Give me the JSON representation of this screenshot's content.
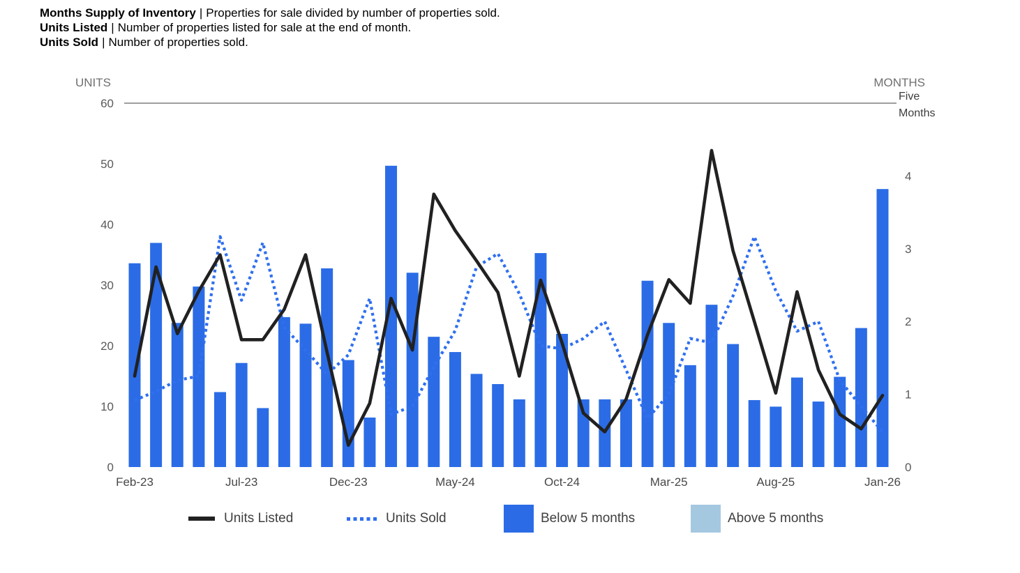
{
  "header": {
    "lines": [
      {
        "term": "Months Supply of Inventory",
        "divider": "|",
        "desc": "Properties for sale divided by number of properties sold."
      },
      {
        "term": "Units Listed",
        "divider": "|",
        "desc": "Number of properties listed for sale at the end of month."
      },
      {
        "term": "Units Sold",
        "divider": "|",
        "desc": "Number of properties sold."
      }
    ]
  },
  "chart_data": {
    "type": "combo: bars (months supply, right axis) + two lines (units, left axis)",
    "title": "Months Supply of Inventory",
    "grid": "off (single rule line at top = 5 months / 60 units)",
    "legend_position": "bottom",
    "categories": [
      "Feb-23",
      "Mar-23",
      "Apr-23",
      "May-23",
      "Jun-23",
      "Jul-23",
      "Aug-23",
      "Sep-23",
      "Oct-23",
      "Nov-23",
      "Dec-23",
      "Jan-24",
      "Feb-24",
      "Mar-24",
      "Apr-24",
      "May-24",
      "Jun-24",
      "Jul-24",
      "Aug-24",
      "Sep-24",
      "Oct-24",
      "Nov-24",
      "Dec-24",
      "Jan-25",
      "Feb-25",
      "Mar-25",
      "Apr-25",
      "May-25",
      "Jun-25",
      "Jul-25",
      "Aug-25",
      "Sep-25",
      "Oct-25",
      "Nov-25",
      "Dec-25",
      "Jan-26"
    ],
    "x_axis": {
      "shown_tick_labels": [
        "Feb-23",
        "Jul-23",
        "Dec-23",
        "May-24",
        "Oct-24",
        "Mar-25",
        "Aug-25",
        "Jan-26"
      ]
    },
    "left_axis": {
      "title": "UNITS",
      "ticks": [
        0,
        10,
        20,
        30,
        40,
        50,
        60
      ],
      "range": [
        0,
        60
      ]
    },
    "right_axis": {
      "title": "MONTHS",
      "ticks": [
        0,
        1,
        2,
        3,
        4
      ],
      "range": [
        0,
        5
      ],
      "top_label": "Five Months",
      "threshold_months": 5
    },
    "series": [
      {
        "name": "Units Listed",
        "type": "line",
        "style": "solid",
        "axis": "left",
        "values": [
          15,
          33,
          22,
          29,
          35,
          21,
          21,
          26,
          35,
          19,
          3.6,
          10.5,
          27.8,
          19.3,
          45,
          39,
          34,
          28.8,
          15,
          30.8,
          20.5,
          8.9,
          5.8,
          11.2,
          21.8,
          30.9,
          27,
          52.2,
          35.7,
          24,
          12.2,
          28.9,
          16,
          8.7,
          6.3,
          11.8
        ]
      },
      {
        "name": "Units Sold",
        "type": "line",
        "style": "dotted",
        "axis": "left",
        "values": [
          11,
          12.5,
          14.3,
          15,
          38,
          27.5,
          37,
          23,
          19.3,
          15.3,
          18.5,
          27.8,
          8.7,
          10,
          16.5,
          22.5,
          33,
          35.2,
          28.6,
          20,
          19.5,
          21.2,
          24,
          16,
          8,
          12,
          21.2,
          20.5,
          28.2,
          38,
          29.1,
          22.4,
          24,
          14.3,
          10,
          5.8
        ]
      },
      {
        "name": "Months Supply of Inventory",
        "type": "bar",
        "axis": "right",
        "values": [
          2.8,
          3.08,
          1.98,
          2.48,
          1.03,
          1.43,
          0.81,
          2.06,
          1.97,
          2.73,
          1.47,
          0.68,
          4.14,
          2.67,
          1.79,
          1.58,
          1.28,
          1.14,
          0.93,
          2.94,
          1.83,
          0.93,
          0.93,
          0.93,
          2.56,
          1.98,
          1.4,
          2.23,
          1.69,
          0.92,
          0.83,
          1.23,
          0.9,
          1.24,
          1.91,
          3.82
        ]
      }
    ]
  },
  "legend": {
    "items": [
      {
        "label": "Units Listed",
        "swatch": "black-line"
      },
      {
        "label": "Units Sold",
        "swatch": "blue-dotted-line"
      },
      {
        "label": "Below 5 months",
        "swatch": "blue-rect"
      },
      {
        "label": "Above 5 months",
        "swatch": "lightblue-rect"
      }
    ]
  },
  "colors": {
    "background": "#ffffff",
    "bar_blue": "#2b6ce6",
    "light_blue": "#a5c8e1",
    "line_black": "#212121",
    "dotted_blue": "#2f6ff0",
    "axis_tick_text": "#5a5a5a",
    "x_axis_text": "#474747",
    "axis_title_text": "#6f6f6f",
    "five_months_text": "#3d3d3d",
    "rule_gray": "#9e9e9e",
    "legend_text": "#3f3f3f"
  }
}
